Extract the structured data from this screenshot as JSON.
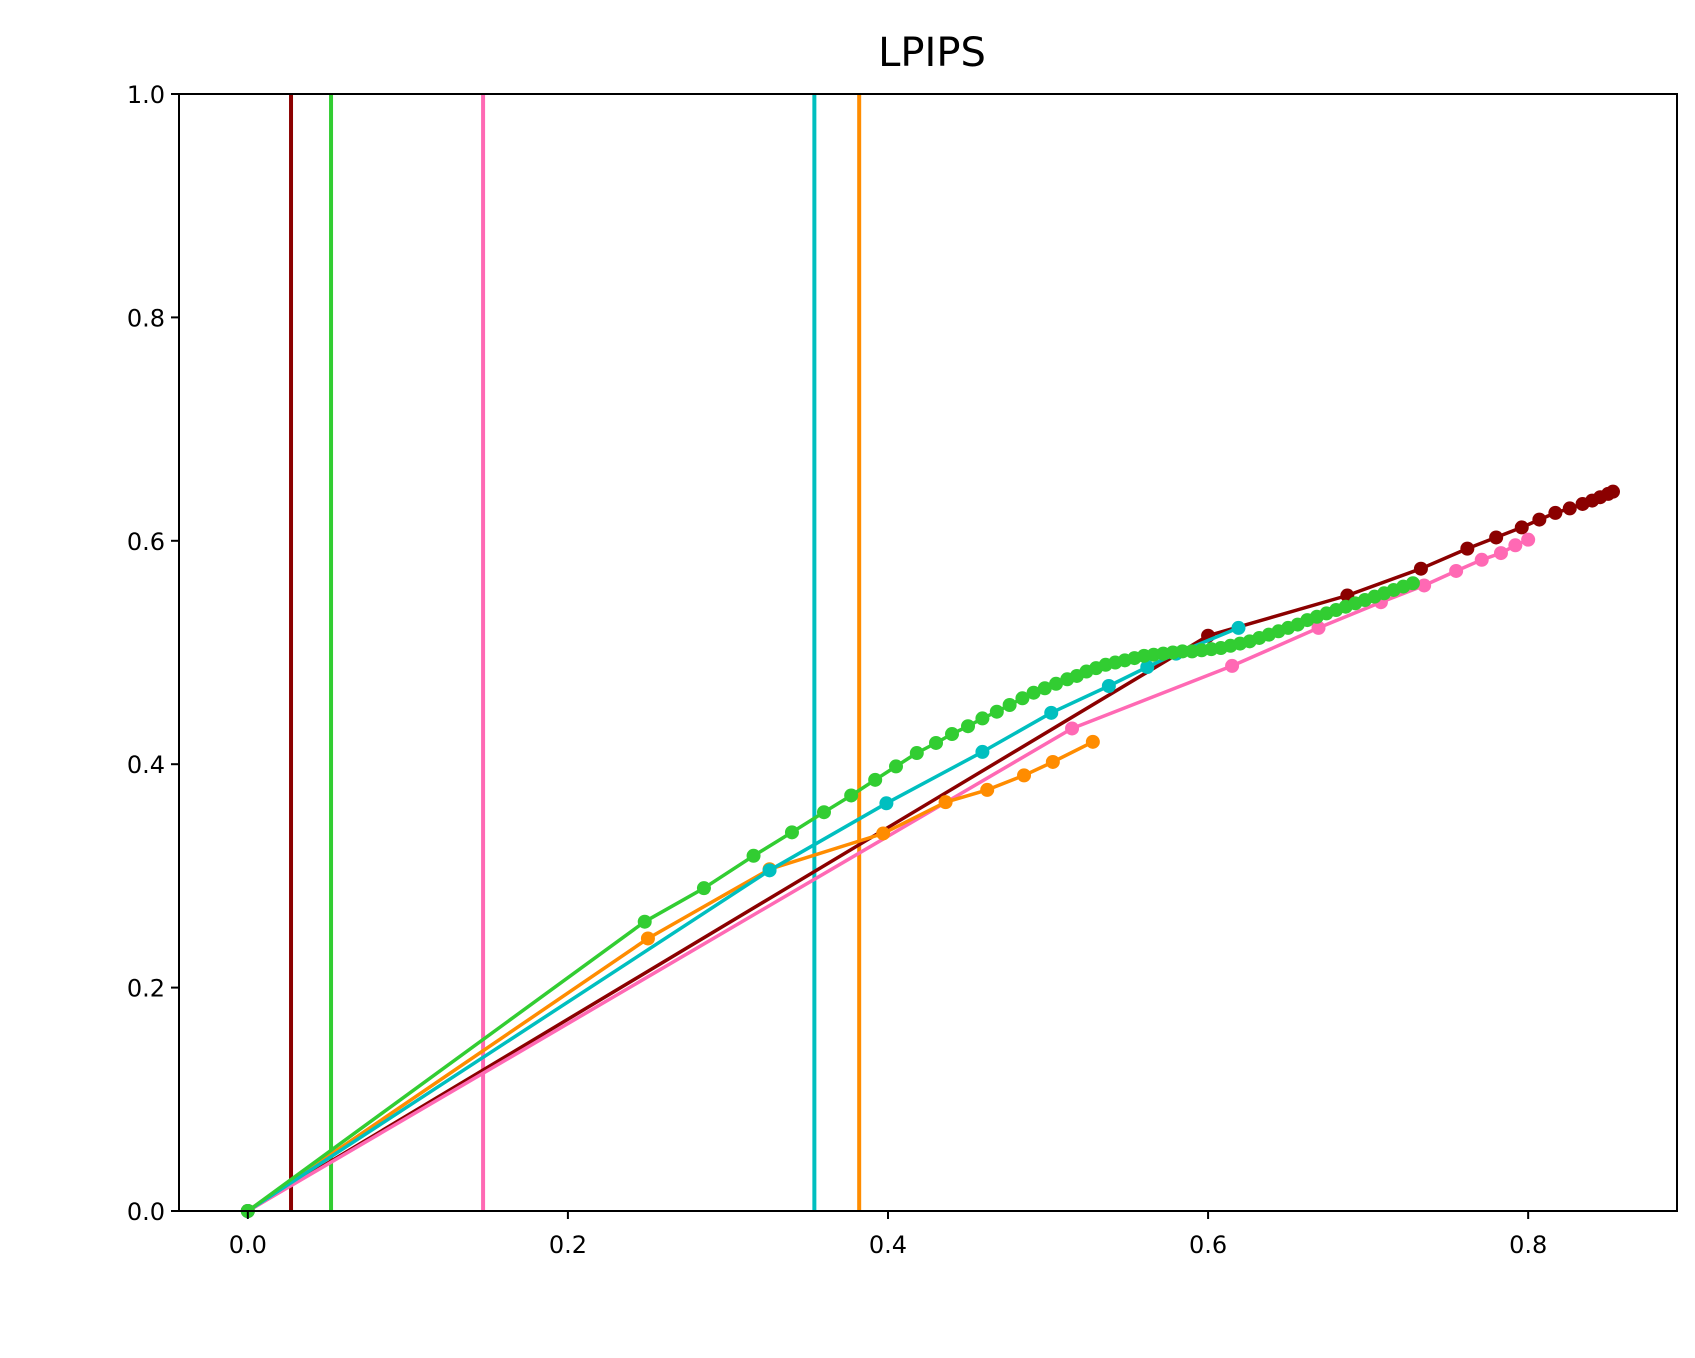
{
  "chart_data": {
    "type": "line",
    "title": "LPIPS",
    "xlabel": "",
    "ylabel": "",
    "xlim": [
      -0.043,
      0.893
    ],
    "ylim": [
      0.0,
      1.0
    ],
    "xticks": [
      0.0,
      0.2,
      0.4,
      0.6,
      0.8
    ],
    "yticks": [
      0.0,
      0.2,
      0.4,
      0.6,
      0.8,
      1.0
    ],
    "xtick_labels": [
      "0.0",
      "0.2",
      "0.4",
      "0.6",
      "0.8"
    ],
    "ytick_labels": [
      "0.0",
      "0.2",
      "0.4",
      "0.6",
      "0.8",
      "1.0"
    ],
    "grid": false,
    "legend": "none",
    "vertical_lines": [
      {
        "x": 0.027,
        "color": "#8b0000"
      },
      {
        "x": 0.052,
        "color": "#32cd32"
      },
      {
        "x": 0.147,
        "color": "#ff69b4"
      },
      {
        "x": 0.354,
        "color": "#00bfbf"
      },
      {
        "x": 0.382,
        "color": "#ff8c00"
      }
    ],
    "series": [
      {
        "color": "#8b0000",
        "points": [
          [
            0.0,
            0.0
          ],
          [
            0.6,
            0.515
          ],
          [
            0.687,
            0.551
          ],
          [
            0.733,
            0.575
          ],
          [
            0.762,
            0.593
          ],
          [
            0.78,
            0.603
          ],
          [
            0.796,
            0.612
          ],
          [
            0.807,
            0.619
          ],
          [
            0.817,
            0.625
          ],
          [
            0.826,
            0.629
          ],
          [
            0.834,
            0.633
          ],
          [
            0.84,
            0.636
          ],
          [
            0.845,
            0.639
          ],
          [
            0.85,
            0.642
          ],
          [
            0.853,
            0.644
          ]
        ]
      },
      {
        "color": "#ff69b4",
        "points": [
          [
            0.0,
            0.0
          ],
          [
            0.515,
            0.432
          ],
          [
            0.615,
            0.488
          ],
          [
            0.669,
            0.522
          ],
          [
            0.708,
            0.545
          ],
          [
            0.735,
            0.56
          ],
          [
            0.755,
            0.573
          ],
          [
            0.771,
            0.583
          ],
          [
            0.783,
            0.589
          ],
          [
            0.792,
            0.596
          ],
          [
            0.8,
            0.601
          ]
        ]
      },
      {
        "color": "#ff8c00",
        "points": [
          [
            0.0,
            0.0
          ],
          [
            0.25,
            0.244
          ],
          [
            0.326,
            0.306
          ],
          [
            0.397,
            0.338
          ],
          [
            0.436,
            0.366
          ],
          [
            0.462,
            0.377
          ],
          [
            0.485,
            0.39
          ],
          [
            0.503,
            0.402
          ],
          [
            0.528,
            0.42
          ]
        ]
      },
      {
        "color": "#00bfbf",
        "points": [
          [
            0.0,
            0.0
          ],
          [
            0.326,
            0.305
          ],
          [
            0.399,
            0.365
          ],
          [
            0.459,
            0.411
          ],
          [
            0.502,
            0.446
          ],
          [
            0.538,
            0.47
          ],
          [
            0.562,
            0.487
          ],
          [
            0.58,
            0.499
          ],
          [
            0.619,
            0.522
          ]
        ]
      },
      {
        "color": "#32cd32",
        "points": [
          [
            0.0,
            0.0
          ],
          [
            0.248,
            0.259
          ],
          [
            0.285,
            0.289
          ],
          [
            0.316,
            0.318
          ],
          [
            0.34,
            0.339
          ],
          [
            0.36,
            0.357
          ],
          [
            0.377,
            0.372
          ],
          [
            0.392,
            0.386
          ],
          [
            0.405,
            0.398
          ],
          [
            0.418,
            0.41
          ],
          [
            0.43,
            0.419
          ],
          [
            0.44,
            0.427
          ],
          [
            0.45,
            0.434
          ],
          [
            0.459,
            0.441
          ],
          [
            0.468,
            0.447
          ],
          [
            0.476,
            0.453
          ],
          [
            0.484,
            0.459
          ],
          [
            0.491,
            0.464
          ],
          [
            0.498,
            0.468
          ],
          [
            0.505,
            0.472
          ],
          [
            0.512,
            0.476
          ],
          [
            0.518,
            0.479
          ],
          [
            0.524,
            0.483
          ],
          [
            0.53,
            0.486
          ],
          [
            0.536,
            0.489
          ],
          [
            0.542,
            0.491
          ],
          [
            0.548,
            0.493
          ],
          [
            0.554,
            0.495
          ],
          [
            0.56,
            0.497
          ],
          [
            0.566,
            0.498
          ],
          [
            0.572,
            0.499
          ],
          [
            0.578,
            0.5
          ],
          [
            0.584,
            0.501
          ],
          [
            0.59,
            0.501
          ],
          [
            0.596,
            0.502
          ],
          [
            0.602,
            0.503
          ],
          [
            0.608,
            0.504
          ],
          [
            0.614,
            0.506
          ],
          [
            0.62,
            0.508
          ],
          [
            0.626,
            0.51
          ],
          [
            0.632,
            0.513
          ],
          [
            0.638,
            0.516
          ],
          [
            0.644,
            0.519
          ],
          [
            0.65,
            0.522
          ],
          [
            0.656,
            0.525
          ],
          [
            0.662,
            0.529
          ],
          [
            0.668,
            0.532
          ],
          [
            0.674,
            0.535
          ],
          [
            0.68,
            0.538
          ],
          [
            0.686,
            0.541
          ],
          [
            0.692,
            0.544
          ],
          [
            0.698,
            0.547
          ],
          [
            0.704,
            0.55
          ],
          [
            0.71,
            0.553
          ],
          [
            0.716,
            0.556
          ],
          [
            0.722,
            0.559
          ],
          [
            0.728,
            0.562
          ]
        ]
      }
    ]
  }
}
